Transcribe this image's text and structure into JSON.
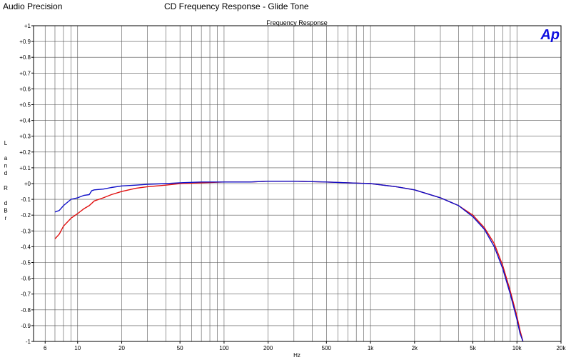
{
  "header": {
    "brand": "Audio Precision",
    "title": "CD Frequency Response - Glide Tone"
  },
  "logo_text": "Ap",
  "chart_data": {
    "type": "line",
    "title": "Frequency Response",
    "xlabel": "Hz",
    "ylabel_chars": [
      "L",
      "",
      "a",
      "n",
      "d",
      "",
      "R",
      "",
      "d",
      "B",
      "r"
    ],
    "xscale": "log",
    "xlim": [
      5,
      20000
    ],
    "ylim": [
      -1,
      1
    ],
    "xticks": [
      {
        "value": 6,
        "label": "6"
      },
      {
        "value": 10,
        "label": "10"
      },
      {
        "value": 20,
        "label": "20"
      },
      {
        "value": 50,
        "label": "50"
      },
      {
        "value": 100,
        "label": "100"
      },
      {
        "value": 200,
        "label": "200"
      },
      {
        "value": 500,
        "label": "500"
      },
      {
        "value": 1000,
        "label": "1k"
      },
      {
        "value": 2000,
        "label": "2k"
      },
      {
        "value": 5000,
        "label": "5k"
      },
      {
        "value": 10000,
        "label": "10k"
      },
      {
        "value": 20000,
        "label": "20k"
      }
    ],
    "yticks": [
      {
        "value": 1,
        "label": "+1"
      },
      {
        "value": 0.9,
        "label": "+0.9"
      },
      {
        "value": 0.8,
        "label": "+0.8"
      },
      {
        "value": 0.7,
        "label": "+0.7"
      },
      {
        "value": 0.6,
        "label": "+0.6"
      },
      {
        "value": 0.5,
        "label": "+0.5"
      },
      {
        "value": 0.4,
        "label": "+0.4"
      },
      {
        "value": 0.3,
        "label": "+0.3"
      },
      {
        "value": 0.2,
        "label": "+0.2"
      },
      {
        "value": 0.1,
        "label": "+0.1"
      },
      {
        "value": 0,
        "label": "+0"
      },
      {
        "value": -0.1,
        "label": "-0.1"
      },
      {
        "value": -0.2,
        "label": "-0.2"
      },
      {
        "value": -0.3,
        "label": "-0.3"
      },
      {
        "value": -0.4,
        "label": "-0.4"
      },
      {
        "value": -0.5,
        "label": "-0.5"
      },
      {
        "value": -0.6,
        "label": "-0.6"
      },
      {
        "value": -0.7,
        "label": "-0.7"
      },
      {
        "value": -0.8,
        "label": "-0.8"
      },
      {
        "value": -0.9,
        "label": "-0.9"
      },
      {
        "value": -1,
        "label": "-1"
      }
    ],
    "grid": true,
    "series": [
      {
        "color": "#e01010",
        "points": [
          [
            7,
            -0.35
          ],
          [
            7.5,
            -0.32
          ],
          [
            8,
            -0.27
          ],
          [
            9,
            -0.22
          ],
          [
            10,
            -0.19
          ],
          [
            11,
            -0.16
          ],
          [
            12,
            -0.14
          ],
          [
            13,
            -0.11
          ],
          [
            15,
            -0.09
          ],
          [
            17,
            -0.07
          ],
          [
            20,
            -0.05
          ],
          [
            25,
            -0.03
          ],
          [
            30,
            -0.02
          ],
          [
            40,
            -0.01
          ],
          [
            50,
            0.0
          ],
          [
            70,
            0.005
          ],
          [
            100,
            0.01
          ],
          [
            150,
            0.01
          ],
          [
            200,
            0.015
          ],
          [
            300,
            0.015
          ],
          [
            500,
            0.01
          ],
          [
            700,
            0.005
          ],
          [
            1000,
            0.0
          ],
          [
            1500,
            -0.02
          ],
          [
            2000,
            -0.04
          ],
          [
            3000,
            -0.09
          ],
          [
            4000,
            -0.14
          ],
          [
            5000,
            -0.2
          ],
          [
            6000,
            -0.28
          ],
          [
            7000,
            -0.38
          ],
          [
            8000,
            -0.52
          ],
          [
            9000,
            -0.68
          ],
          [
            10000,
            -0.84
          ],
          [
            10500,
            -0.93
          ],
          [
            11000,
            -1.0
          ]
        ]
      },
      {
        "color": "#1010c8",
        "points": [
          [
            7,
            -0.18
          ],
          [
            7.5,
            -0.17
          ],
          [
            8,
            -0.14
          ],
          [
            9,
            -0.1
          ],
          [
            10,
            -0.09
          ],
          [
            11,
            -0.075
          ],
          [
            12,
            -0.07
          ],
          [
            12.5,
            -0.045
          ],
          [
            13,
            -0.04
          ],
          [
            15,
            -0.035
          ],
          [
            17,
            -0.025
          ],
          [
            20,
            -0.015
          ],
          [
            25,
            -0.01
          ],
          [
            30,
            -0.005
          ],
          [
            40,
            0.0
          ],
          [
            50,
            0.005
          ],
          [
            70,
            0.01
          ],
          [
            100,
            0.01
          ],
          [
            150,
            0.01
          ],
          [
            200,
            0.015
          ],
          [
            300,
            0.015
          ],
          [
            500,
            0.01
          ],
          [
            700,
            0.005
          ],
          [
            1000,
            0.0
          ],
          [
            1500,
            -0.02
          ],
          [
            2000,
            -0.04
          ],
          [
            3000,
            -0.09
          ],
          [
            4000,
            -0.14
          ],
          [
            5000,
            -0.21
          ],
          [
            6000,
            -0.29
          ],
          [
            7000,
            -0.4
          ],
          [
            8000,
            -0.54
          ],
          [
            9000,
            -0.7
          ],
          [
            10000,
            -0.86
          ],
          [
            10500,
            -0.95
          ],
          [
            11000,
            -1.0
          ]
        ]
      }
    ]
  }
}
